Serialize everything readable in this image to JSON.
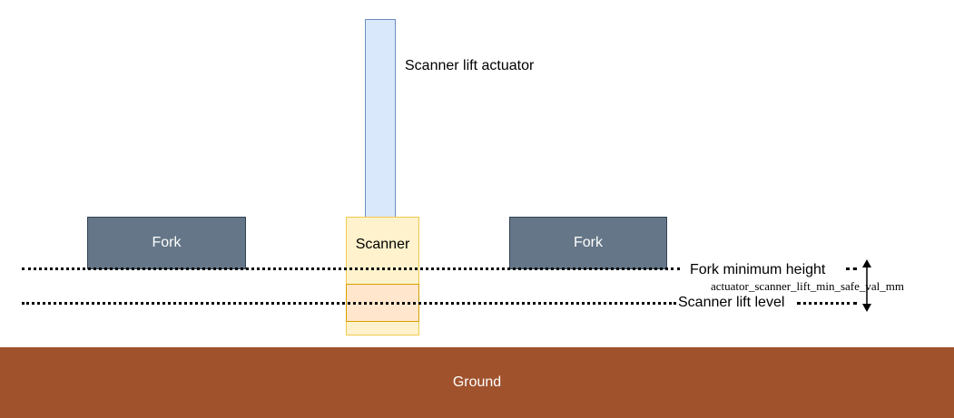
{
  "labels": {
    "actuator": "Scanner lift actuator",
    "scanner": "Scanner",
    "fork_left": "Fork",
    "fork_right": "Fork",
    "fork_min_height": "Fork minimum height",
    "scanner_lift_level": "Scanner lift level",
    "dimension": "actuator_scanner_lift_min_safe_val_mm",
    "ground": "Ground"
  },
  "colors": {
    "fork": "#647687",
    "scanner_fill": "#fff2cc",
    "scanner_stroke": "#f2c94c",
    "scanner_lower_fill": "#ffe6cc",
    "scanner_lower_stroke": "#d6a000",
    "actuator_fill": "#dae8fc",
    "actuator_stroke": "#6c8ebf",
    "ground": "#a0522d"
  }
}
